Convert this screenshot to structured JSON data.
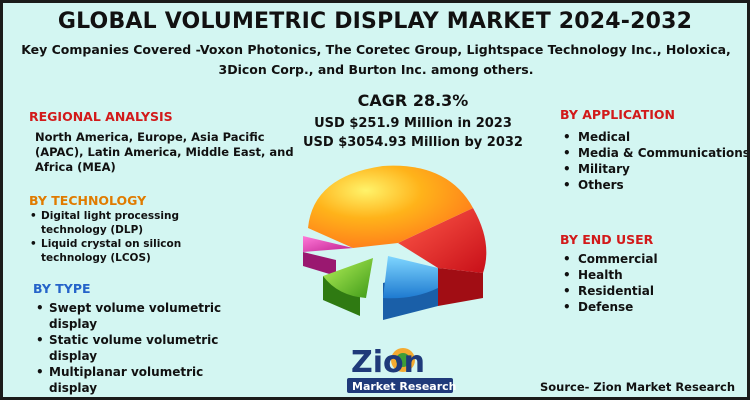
{
  "header": {
    "title": "GLOBAL VOLUMETRIC DISPLAY MARKET 2024-2032",
    "subtitle": "Key Companies Covered -Voxon Photonics, The Coretec Group, Lightspace Technology Inc., Holoxica, 3Dicon Corp., and Burton Inc. among others."
  },
  "stats": {
    "cagr": "CAGR 28.3%",
    "value_2023": "USD $251.9 Million in 2023",
    "value_2032": "USD $3054.93 Million by 2032"
  },
  "regional": {
    "title": "REGIONAL ANALYSIS",
    "text": "North America, Europe, Asia Pacific (APAC), Latin America, Middle East, and Africa (MEA)"
  },
  "technology": {
    "title": "BY TECHNOLOGY",
    "items": [
      "Digital light processing technology (DLP)",
      "Liquid crystal on silicon technology (LCOS)"
    ]
  },
  "type": {
    "title": "BY TYPE",
    "items": [
      "Swept volume volumetric display",
      "Static volume volumetric display",
      "Multiplanar volumetric display"
    ]
  },
  "application": {
    "title": "BY APPLICATION",
    "items": [
      "Medical",
      "Media & Communications",
      "Military",
      "Others"
    ]
  },
  "end_user": {
    "title": "BY END USER",
    "items": [
      "Commercial",
      "Health",
      "Residential",
      "Defense"
    ]
  },
  "logo": {
    "brand": "Zion",
    "subbrand": "Market Research"
  },
  "source": "Source- Zion Market Research",
  "colors": {
    "background": "#d3f6f2",
    "section_red": "#d21a1a",
    "section_orange": "#e07b00",
    "section_blue": "#2563c9",
    "logo_navy": "#1f3a7a"
  }
}
